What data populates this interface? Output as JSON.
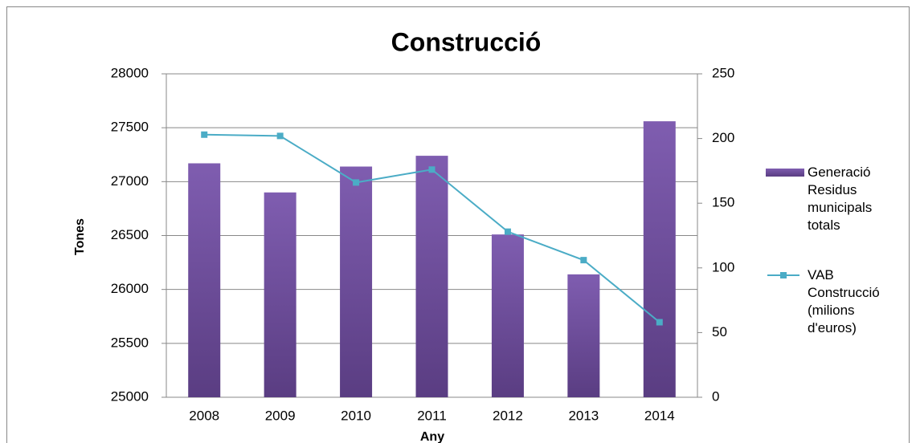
{
  "chart_data": {
    "type": "bar-line",
    "title": "Construcció",
    "x_label": "Any",
    "y_label": "Tones",
    "categories": [
      "2008",
      "2009",
      "2010",
      "2011",
      "2012",
      "2013",
      "2014"
    ],
    "series": [
      {
        "name": "Generació Residus municipals totals",
        "color": "#7b58a8",
        "type": "bar",
        "values": [
          27170,
          26900,
          27140,
          27240,
          26510,
          26140,
          27560
        ]
      },
      {
        "name": "VAB Construcció (milions d'euros)",
        "color": "#4bacc6",
        "type": "line",
        "axis": "y2",
        "values": [
          203,
          202,
          166,
          176,
          128,
          106,
          58
        ]
      }
    ],
    "ylim": [
      25000,
      28000
    ],
    "yticks": [
      25000,
      25500,
      26000,
      26500,
      27000,
      27500,
      28000
    ],
    "y2lim": [
      0,
      250
    ],
    "y2ticks": [
      0,
      50,
      100,
      150,
      200,
      250
    ],
    "grid": true,
    "legend": "right"
  }
}
